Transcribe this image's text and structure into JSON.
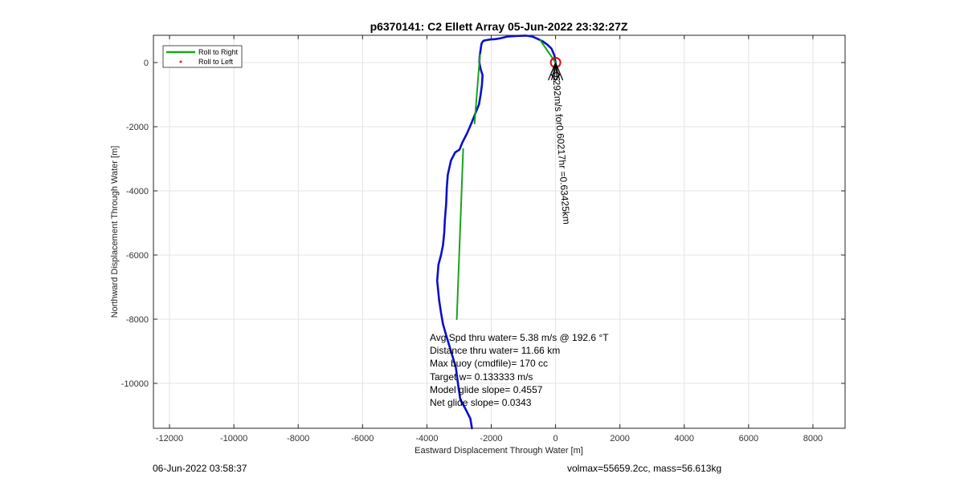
{
  "chart_data": {
    "type": "line",
    "title": "p6370141: C2 Ellett Array 05-Jun-2022 23:32:27Z",
    "xlabel": "Eastward Displacement Through Water [m]",
    "ylabel": "Northward Displacement Through Water [m]",
    "xlim": [
      -12500,
      9000
    ],
    "ylim": [
      -11400,
      850
    ],
    "xticks": [
      -12000,
      -10000,
      -8000,
      -6000,
      -4000,
      -2000,
      0,
      2000,
      4000,
      6000,
      8000
    ],
    "yticks": [
      0,
      -2000,
      -4000,
      -6000,
      -8000,
      -10000
    ],
    "grid": true,
    "legend_placement": "top-left",
    "legend": [
      {
        "label": "Roll to Right",
        "color": "#1aa31a",
        "style": "line"
      },
      {
        "label": "Roll to Left",
        "color": "#e02020",
        "style": "dot"
      }
    ],
    "series": [
      {
        "color": "#0a10c8",
        "x": [
          -2600,
          -2650,
          -2800,
          -2960,
          -3020,
          -3100,
          -3250,
          -3400,
          -3500,
          -3560,
          -3620,
          -3680,
          -3640,
          -3560,
          -3500,
          -3460,
          -3440,
          -3400,
          -3380,
          -3350,
          -3250,
          -3120,
          -3040,
          -2990,
          -2980,
          -2900,
          -2750,
          -2620,
          -2500,
          -2380,
          -2330,
          -2290,
          -2270,
          -2330,
          -2370,
          -2360,
          -2330,
          -2310,
          -2290,
          -2240,
          -2150,
          -2030,
          -1880,
          -1700,
          -1500,
          -1200,
          -920,
          -720,
          -560,
          -400,
          -260,
          -130,
          -40,
          0
        ],
        "y": [
          -11400,
          -11100,
          -10800,
          -10500,
          -10100,
          -9500,
          -9000,
          -8500,
          -8150,
          -7800,
          -7400,
          -6800,
          -6300,
          -6000,
          -5700,
          -5300,
          -4900,
          -4400,
          -3900,
          -3500,
          -3050,
          -2800,
          -2750,
          -2720,
          -2700,
          -2500,
          -2200,
          -1900,
          -1600,
          -1300,
          -1000,
          -700,
          -400,
          -200,
          0,
          200,
          400,
          550,
          620,
          680,
          700,
          720,
          730,
          760,
          810,
          830,
          840,
          810,
          740,
          660,
          560,
          440,
          230,
          0
        ]
      },
      {
        "color": "#1aa31a",
        "x": [
          -3070,
          -2870
        ],
        "y": [
          -8000,
          -2690
        ]
      },
      {
        "color": "#1aa31a",
        "x": [
          -2520,
          -2350
        ],
        "y": [
          -1900,
          250
        ]
      },
      {
        "color": "#1aa31a",
        "x": [
          -480,
          0
        ],
        "y": [
          700,
          0
        ]
      }
    ],
    "marker_circle": {
      "x": 0,
      "y": 0,
      "color": "#d01010"
    },
    "annotations": {
      "stats": [
        "Avg Spd thru water=  5.38 m/s @ 192.6 °T",
        "Distance thru water= 11.66 km",
        "Max buoy (cmdfile)= 170 cc",
        "Target w= 0.133333 m/s",
        "Model glide slope= 0.4557",
        "Net glide slope= 0.0343"
      ],
      "rotated_text": "0.292m/s for0.60217hr =0.63425km"
    }
  },
  "footer": {
    "left": "06-Jun-2022 03:58:37",
    "right": "volmax=55659.2cc, mass=56.613kg"
  }
}
